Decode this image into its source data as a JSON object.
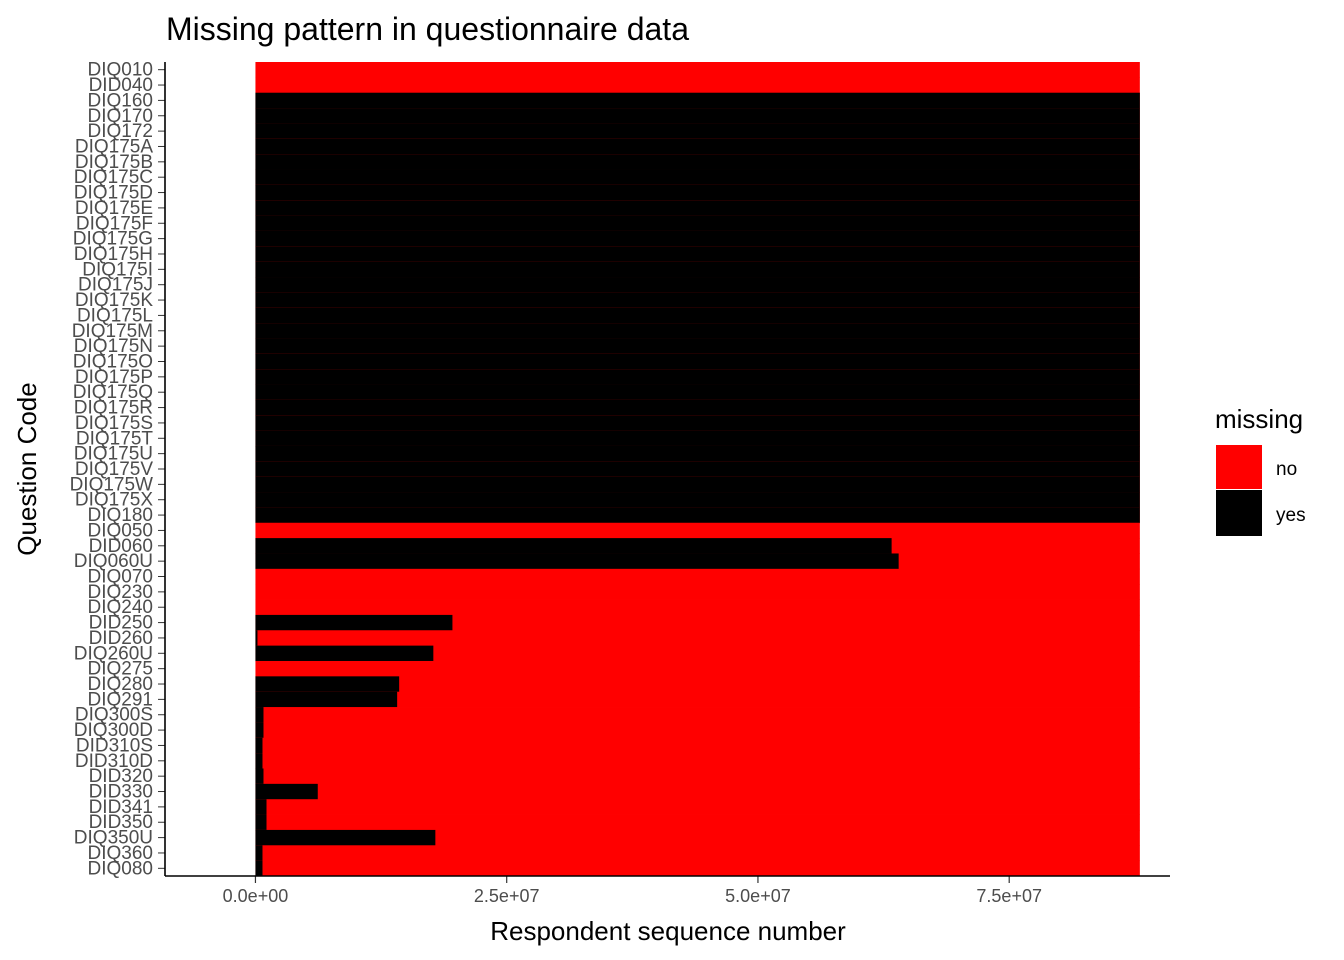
{
  "chart_data": {
    "type": "heatmap",
    "title": "Missing pattern in questionnaire data",
    "xlabel": "Respondent sequence number",
    "ylabel": "Question Code",
    "xlim": [
      -9000000,
      91000000
    ],
    "x_ticks": [
      0,
      25000000,
      50000000,
      75000000
    ],
    "x_tick_labels": [
      "0.0e+00",
      "2.5e+07",
      "5.0e+07",
      "7.5e+07"
    ],
    "x_range_data": [
      0,
      88000000
    ],
    "legend": {
      "title": "missing",
      "placement": "right",
      "entries": [
        {
          "label": "no",
          "color": "#ff0000"
        },
        {
          "label": "yes",
          "color": "#000000"
        }
      ]
    },
    "colors": {
      "no": "#ff0000",
      "yes": "#000000"
    },
    "questions": [
      {
        "code": "DIQ010",
        "missing_until": 0,
        "note": "all no"
      },
      {
        "code": "DID040",
        "missing_until": 0
      },
      {
        "code": "DIQ160",
        "missing_until": 88000000
      },
      {
        "code": "DIQ170",
        "missing_until": 88000000
      },
      {
        "code": "DIQ172",
        "missing_until": 88000000
      },
      {
        "code": "DIQ175A",
        "missing_until": 88000000
      },
      {
        "code": "DIQ175B",
        "missing_until": 88000000
      },
      {
        "code": "DIQ175C",
        "missing_until": 88000000
      },
      {
        "code": "DIQ175D",
        "missing_until": 88000000
      },
      {
        "code": "DIQ175E",
        "missing_until": 88000000
      },
      {
        "code": "DIQ175F",
        "missing_until": 88000000
      },
      {
        "code": "DIQ175G",
        "missing_until": 88000000
      },
      {
        "code": "DIQ175H",
        "missing_until": 88000000
      },
      {
        "code": "DIQ175I",
        "missing_until": 88000000
      },
      {
        "code": "DIQ175J",
        "missing_until": 88000000
      },
      {
        "code": "DIQ175K",
        "missing_until": 88000000
      },
      {
        "code": "DIQ175L",
        "missing_until": 88000000
      },
      {
        "code": "DIQ175M",
        "missing_until": 88000000
      },
      {
        "code": "DIQ175N",
        "missing_until": 88000000
      },
      {
        "code": "DIQ175O",
        "missing_until": 88000000
      },
      {
        "code": "DIQ175P",
        "missing_until": 88000000
      },
      {
        "code": "DIQ175Q",
        "missing_until": 88000000
      },
      {
        "code": "DIQ175R",
        "missing_until": 88000000
      },
      {
        "code": "DIQ175S",
        "missing_until": 88000000
      },
      {
        "code": "DIQ175T",
        "missing_until": 88000000
      },
      {
        "code": "DIQ175U",
        "missing_until": 88000000
      },
      {
        "code": "DIQ175V",
        "missing_until": 88000000
      },
      {
        "code": "DIQ175W",
        "missing_until": 88000000
      },
      {
        "code": "DIQ175X",
        "missing_until": 88000000
      },
      {
        "code": "DIQ180",
        "missing_until": 88000000
      },
      {
        "code": "DIQ050",
        "missing_until": 0
      },
      {
        "code": "DID060",
        "missing_until": 63300000
      },
      {
        "code": "DIQ060U",
        "missing_until": 64000000
      },
      {
        "code": "DIQ070",
        "missing_until": 0
      },
      {
        "code": "DIQ230",
        "missing_until": 0
      },
      {
        "code": "DIQ240",
        "missing_until": 0
      },
      {
        "code": "DID250",
        "missing_until": 19600000
      },
      {
        "code": "DID260",
        "missing_until": 200000
      },
      {
        "code": "DIQ260U",
        "missing_until": 17700000
      },
      {
        "code": "DIQ275",
        "missing_until": 0
      },
      {
        "code": "DIQ280",
        "missing_until": 14300000
      },
      {
        "code": "DIQ291",
        "missing_until": 14100000
      },
      {
        "code": "DIQ300S",
        "missing_until": 800000
      },
      {
        "code": "DIQ300D",
        "missing_until": 800000
      },
      {
        "code": "DID310S",
        "missing_until": 700000
      },
      {
        "code": "DID310D",
        "missing_until": 700000
      },
      {
        "code": "DID320",
        "missing_until": 800000
      },
      {
        "code": "DID330",
        "missing_until": 6200000
      },
      {
        "code": "DID341",
        "missing_until": 1100000
      },
      {
        "code": "DID350",
        "missing_until": 1100000
      },
      {
        "code": "DIQ350U",
        "missing_until": 17900000
      },
      {
        "code": "DIQ360",
        "missing_until": 700000
      },
      {
        "code": "DIQ080",
        "missing_until": 700000
      }
    ]
  }
}
